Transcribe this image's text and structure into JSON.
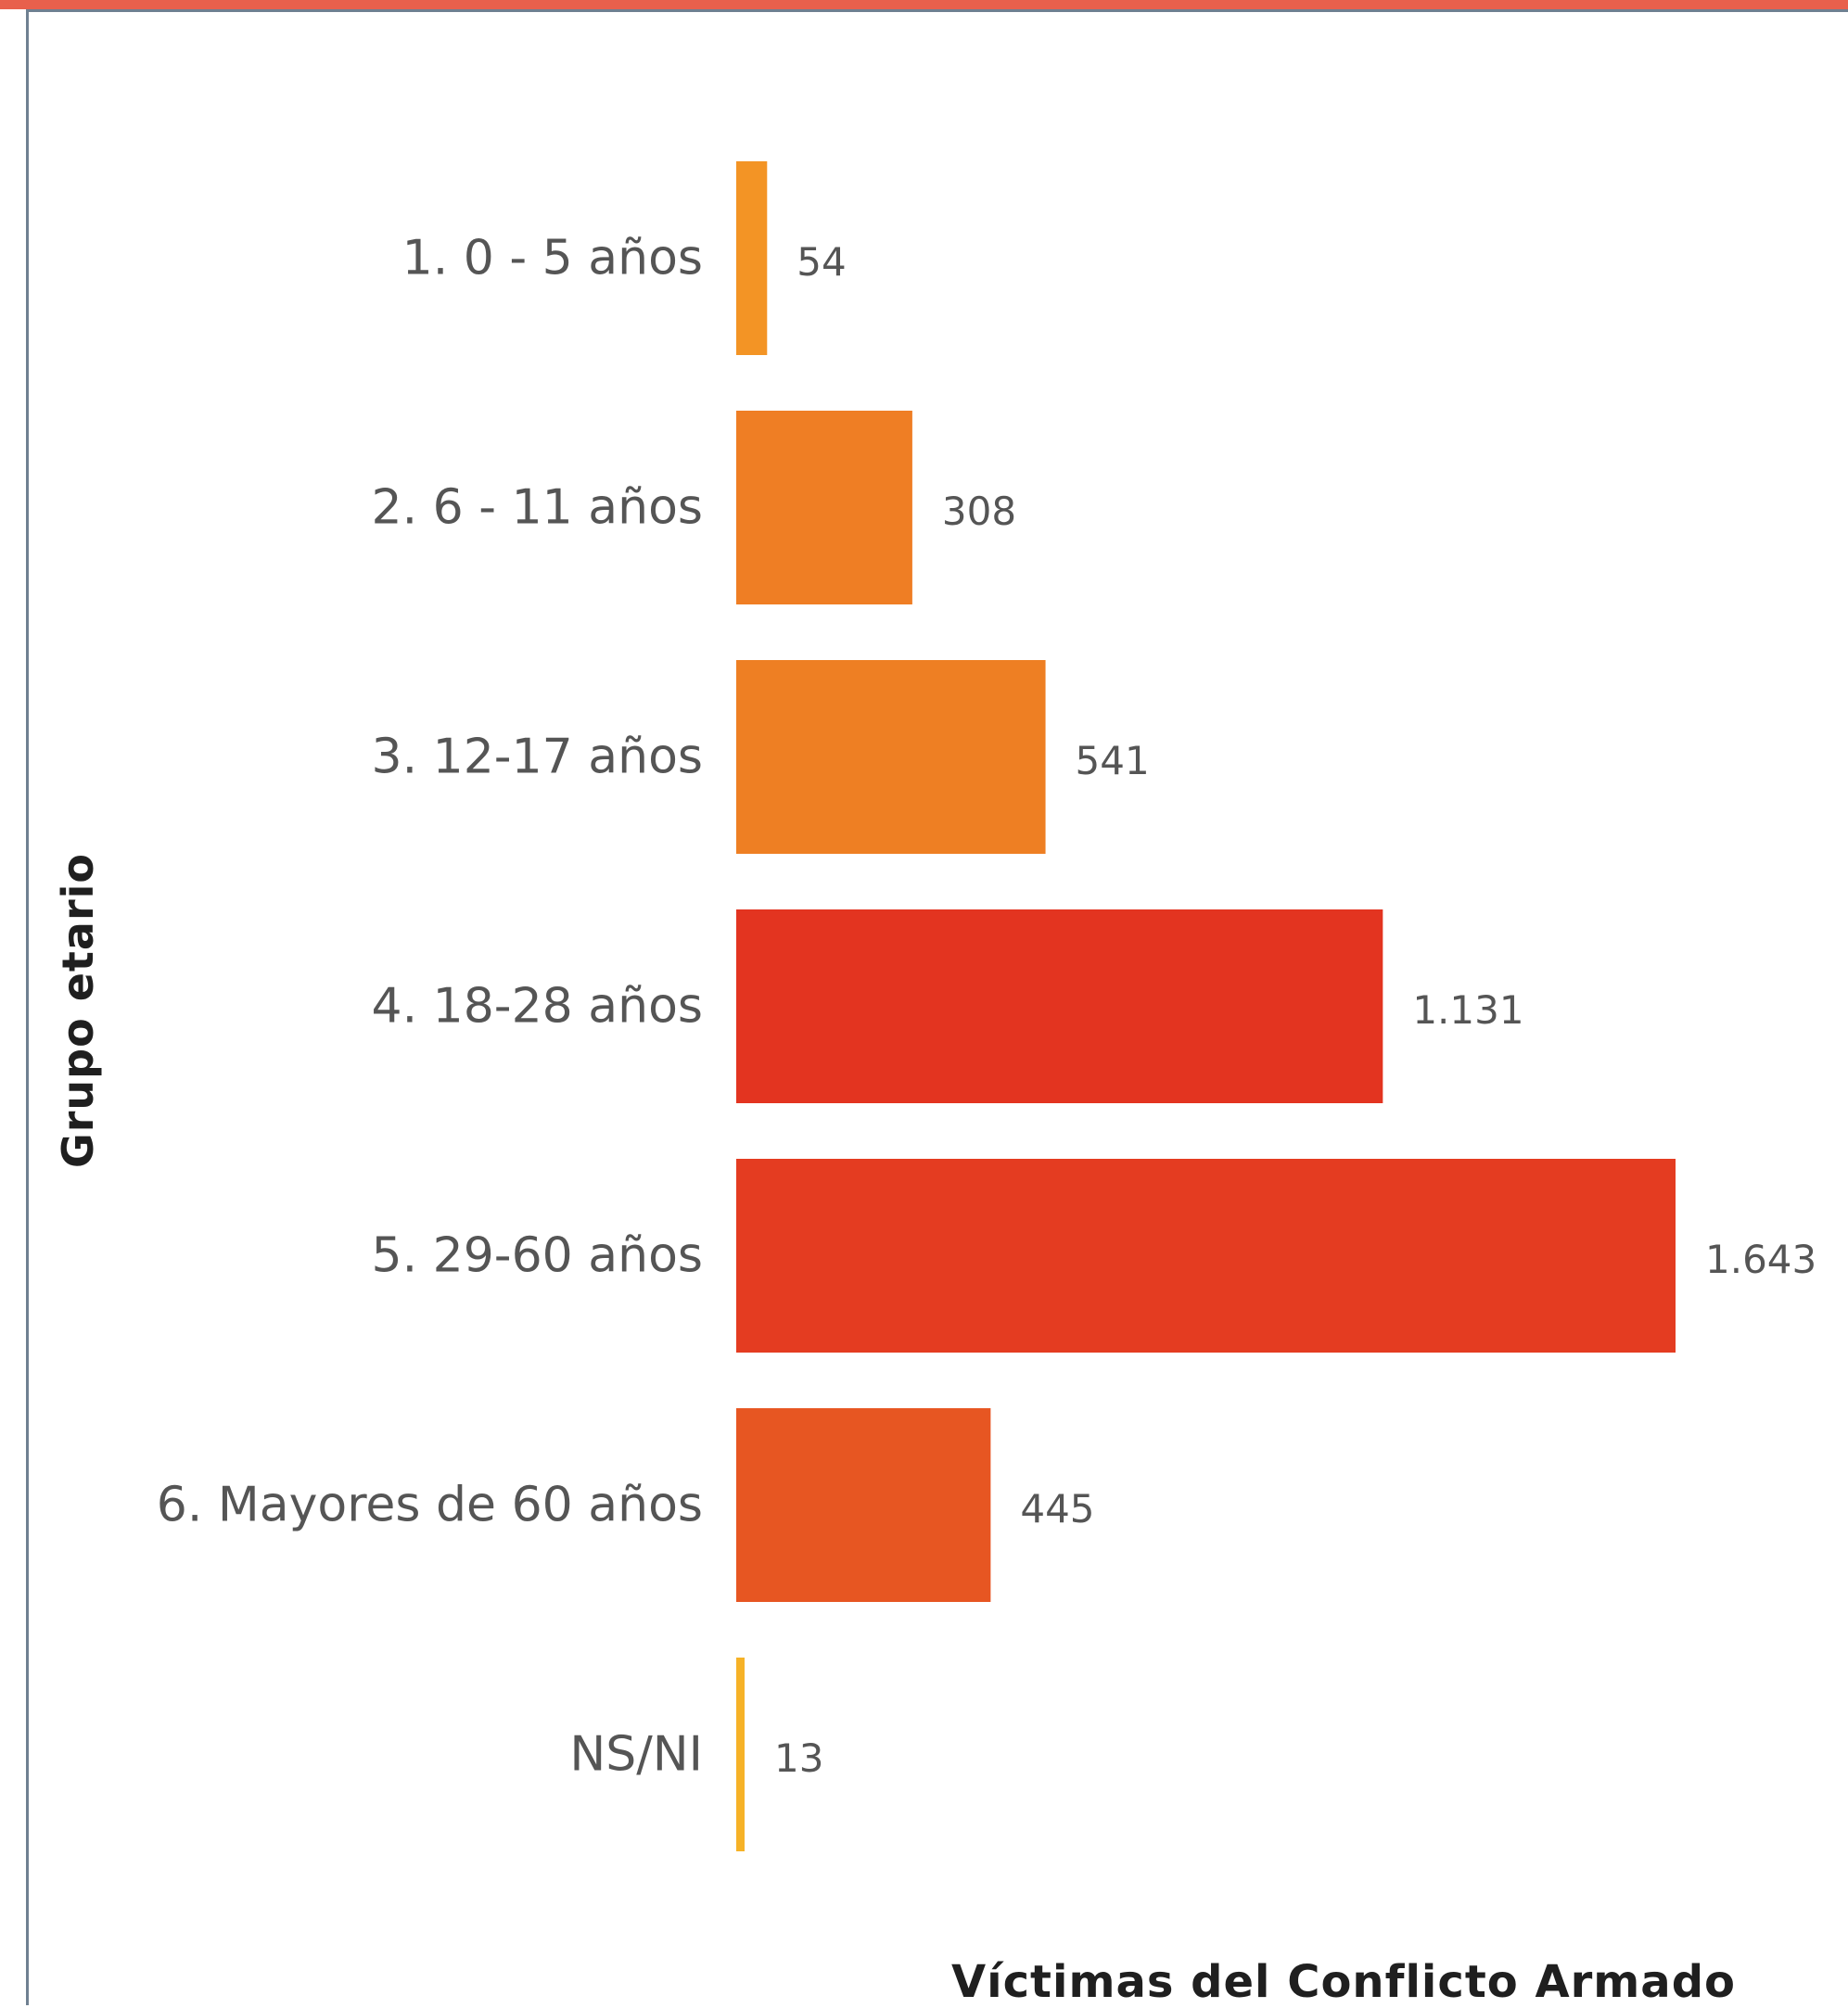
{
  "chart_data": {
    "type": "bar",
    "orientation": "horizontal",
    "ylabel": "Grupo etario",
    "xlabel": "Víctimas del Conflicto Armado",
    "categories": [
      "1. 0 - 5 años",
      "2. 6 - 11 años",
      "3. 12-17 años",
      "4. 18-28 años",
      "5. 29-60 años",
      "6. Mayores de 60 años",
      "NS/NI"
    ],
    "values": [
      54,
      308,
      541,
      1131,
      1643,
      445,
      13
    ],
    "value_labels": [
      "54",
      "308",
      "541",
      "1.131",
      "1.643",
      "445",
      "13"
    ],
    "bar_colors": [
      "#f39425",
      "#ef7e24",
      "#ee7f23",
      "#e33420",
      "#e43c21",
      "#e75622",
      "#f6b227"
    ],
    "xlim": [
      0,
      1643
    ],
    "grid": false,
    "legend": "none"
  },
  "colors": {
    "accent_top": "#e8604c",
    "frame": "#6f8091"
  }
}
